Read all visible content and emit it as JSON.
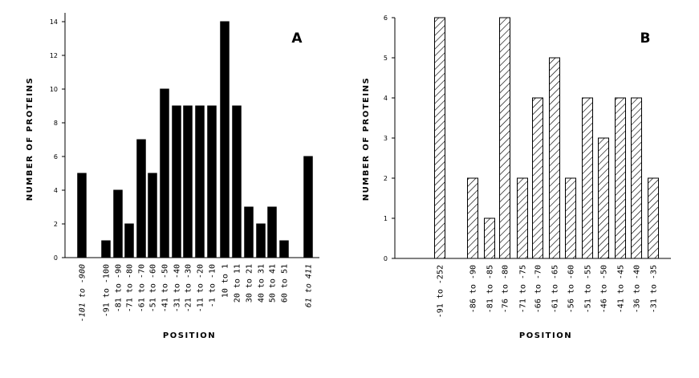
{
  "chart_data": [
    {
      "type": "bar",
      "panel_label": "A",
      "xlabel": "POSITION",
      "ylabel": "NUMBER OF PROTEINS",
      "ylim": [
        0,
        14
      ],
      "yticks": [
        "0",
        "2",
        "4",
        "6",
        "8",
        "10",
        "12",
        "14"
      ],
      "fill": "solid",
      "bar_color": "#000000",
      "categories": [
        "-101 to -900",
        "-91 to -100",
        "-81 to -90",
        "-71 to -80",
        "-61 to -70",
        "-51 to -60",
        "-41 to -50",
        "-31 to -40",
        "-21 to -30",
        "-11 to -20",
        "-1 to -10",
        "10 to 1",
        "20 to 11",
        "30 to 21",
        "40 to 31",
        "50 to 41",
        "60 to 51",
        "61 to 411"
      ],
      "italic_categories": [
        "-101 to -900",
        "61 to 411"
      ],
      "values": [
        5,
        1,
        4,
        2,
        7,
        5,
        10,
        9,
        9,
        9,
        9,
        14,
        9,
        3,
        2,
        3,
        1,
        6
      ]
    },
    {
      "type": "bar",
      "panel_label": "B",
      "xlabel": "POSITION",
      "ylabel": "NUMBER OF PROTEINS",
      "ylim": [
        0,
        6
      ],
      "yticks": [
        "0",
        "1",
        "2",
        "3",
        "4",
        "5",
        "6"
      ],
      "fill": "hatched",
      "bar_color": "#000000",
      "categories": [
        "-91 to -252",
        "-86 to -90",
        "-81 to -85",
        "-76 to -80",
        "-71 to -75",
        "-66 to -70",
        "-61 to -65",
        "-56 to -60",
        "-51 to -55",
        "-46 to -50",
        "-41 to -45",
        "-36 to -40",
        "-31 to -35"
      ],
      "italic_categories": [],
      "values": [
        6,
        2,
        1,
        6,
        2,
        4,
        5,
        2,
        4,
        3,
        4,
        4,
        2
      ]
    }
  ]
}
